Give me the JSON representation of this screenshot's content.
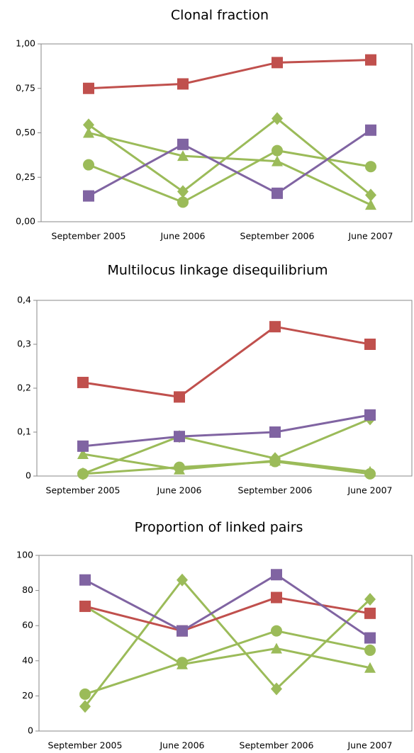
{
  "chart_data": [
    {
      "type": "line",
      "title": "Clonal fraction",
      "categories": [
        "September 2005",
        "June 2006",
        "September 2006",
        "June 2007"
      ],
      "ylim": [
        0,
        1
      ],
      "grid": false,
      "yticks": [
        {
          "value": 0,
          "label": "0,00"
        },
        {
          "value": 0.25,
          "label": "0,25"
        },
        {
          "value": 0.5,
          "label": "0,50"
        },
        {
          "value": 0.75,
          "label": "0,75"
        },
        {
          "value": 1,
          "label": "1,00"
        }
      ],
      "series": [
        {
          "color": "#9bbb59",
          "marker": "diamond",
          "values": [
            0.545,
            0.17,
            0.58,
            0.15
          ]
        },
        {
          "color": "#9bbb59",
          "marker": "triangle",
          "values": [
            0.5,
            0.37,
            0.34,
            0.095
          ]
        },
        {
          "color": "#9bbb59",
          "marker": "circle",
          "values": [
            0.32,
            0.11,
            0.4,
            0.31
          ]
        },
        {
          "color": "#8064a2",
          "marker": "square",
          "values": [
            0.145,
            0.435,
            0.16,
            0.515
          ]
        },
        {
          "color": "#c0504d",
          "marker": "square",
          "values": [
            0.75,
            0.775,
            0.895,
            0.91
          ]
        }
      ]
    },
    {
      "type": "line",
      "title": "Multilocus linkage disequilibrium",
      "categories": [
        "September 2005",
        "June 2006",
        "September 2006",
        "June 2007"
      ],
      "ylim": [
        0,
        0.4
      ],
      "grid": false,
      "yticks": [
        0,
        {
          "value": 0.1,
          "label": "0,1"
        },
        {
          "value": 0.2,
          "label": "0,2"
        },
        {
          "value": 0.3,
          "label": "0,3"
        },
        {
          "value": 0.4,
          "label": "0,4"
        }
      ],
      "series": [
        {
          "color": "#9bbb59",
          "marker": "diamond",
          "values": [
            0.005,
            0.09,
            0.04,
            0.13
          ]
        },
        {
          "color": "#9bbb59",
          "marker": "triangle",
          "values": [
            0.05,
            0.015,
            0.035,
            0.01
          ]
        },
        {
          "color": "#9bbb59",
          "marker": "circle",
          "values": [
            0.005,
            0.02,
            0.033,
            0.005
          ]
        },
        {
          "color": "#8064a2",
          "marker": "square",
          "values": [
            0.068,
            0.09,
            0.1,
            0.139
          ]
        },
        {
          "color": "#c0504d",
          "marker": "square",
          "values": [
            0.213,
            0.18,
            0.34,
            0.3
          ]
        }
      ]
    },
    {
      "type": "line",
      "title": "Proportion of linked pairs",
      "categories": [
        "September 2005",
        "June 2006",
        "September 2006",
        "June 2007"
      ],
      "ylim": [
        0,
        100
      ],
      "grid": false,
      "yticks": [
        0,
        20,
        40,
        60,
        80,
        100
      ],
      "series": [
        {
          "color": "#9bbb59",
          "marker": "diamond",
          "values": [
            14,
            86,
            24,
            75
          ]
        },
        {
          "color": "#9bbb59",
          "marker": "triangle",
          "values": [
            71,
            38,
            47,
            36
          ]
        },
        {
          "color": "#9bbb59",
          "marker": "circle",
          "values": [
            21,
            39,
            57,
            46
          ]
        },
        {
          "color": "#c0504d",
          "marker": "square",
          "values": [
            71,
            57,
            76,
            67
          ]
        },
        {
          "color": "#8064a2",
          "marker": "square",
          "values": [
            86,
            57,
            89,
            53
          ]
        }
      ]
    }
  ]
}
